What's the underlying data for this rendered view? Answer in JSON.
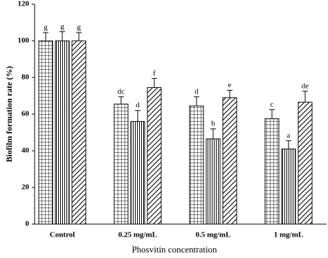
{
  "chart_data": {
    "type": "bar",
    "y_label": "Biofilm formation rate (%)",
    "x_label": "Phosvitin concentration",
    "categories": [
      "Control",
      "0.25 mg/mL",
      "0.5 mg/mL",
      "1 mg/mL"
    ],
    "ylim": [
      0,
      120
    ],
    "yticks": [
      0,
      20,
      40,
      60,
      80,
      100,
      120
    ],
    "series": [
      {
        "color": "#000000",
        "pattern": "grid",
        "values": [
          100,
          65.5,
          64.5,
          57.5
        ],
        "errors": [
          4.5,
          4,
          5,
          5
        ],
        "letters": [
          "g",
          "dc",
          "d",
          "c"
        ]
      },
      {
        "color": "#000000",
        "pattern": "vertical",
        "values": [
          100,
          56,
          46.5,
          41
        ],
        "errors": [
          5,
          6,
          5.5,
          4.5
        ],
        "letters": [
          "g",
          "d",
          "b",
          "a"
        ]
      },
      {
        "color": "#000000",
        "pattern": "diagonal",
        "values": [
          100,
          74.5,
          69,
          66.5
        ],
        "errors": [
          4.5,
          5,
          4,
          6
        ],
        "letters": [
          "g",
          "f",
          "e",
          "de"
        ]
      }
    ]
  }
}
